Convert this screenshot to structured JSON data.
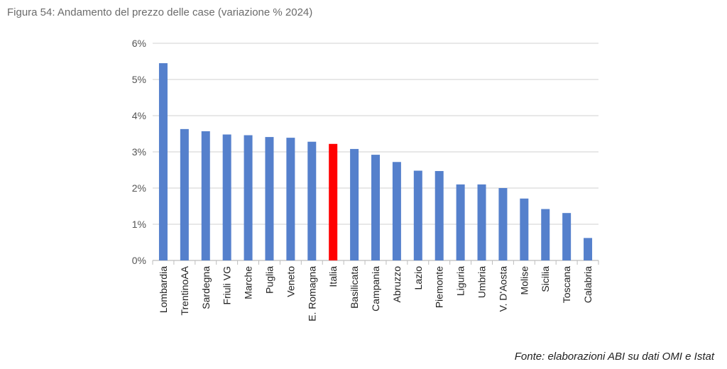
{
  "title": "Figura 54: Andamento del prezzo delle case (variazione % 2024)",
  "source": "Fonte: elaborazioni ABI su dati OMI e Istat",
  "chart_data": {
    "type": "bar",
    "title": "Figura 54: Andamento del prezzo delle case (variazione % 2024)",
    "categories": [
      "Lombardia",
      "TrentinoAA",
      "Sardegna",
      "Friuli VG",
      "Marche",
      "Puglia",
      "Veneto",
      "E. Romagna",
      "Italia",
      "Basilicata",
      "Campania",
      "Abruzzo",
      "Lazio",
      "Piemonte",
      "Liguria",
      "Umbria",
      "V. D'Aosta",
      "Molise",
      "Sicilia",
      "Toscana",
      "Calabria"
    ],
    "values": [
      5.45,
      3.63,
      3.57,
      3.48,
      3.46,
      3.41,
      3.39,
      3.28,
      3.22,
      3.08,
      2.92,
      2.72,
      2.48,
      2.47,
      2.1,
      2.1,
      2.0,
      1.71,
      1.42,
      1.31,
      0.62
    ],
    "ylim": [
      0,
      6
    ],
    "yticks": [
      "0%",
      "1%",
      "2%",
      "3%",
      "4%",
      "5%",
      "6%"
    ],
    "grid": true,
    "colors": {
      "default": "#5580CC",
      "highlight": "#FF0000"
    },
    "highlight": "Italia"
  }
}
